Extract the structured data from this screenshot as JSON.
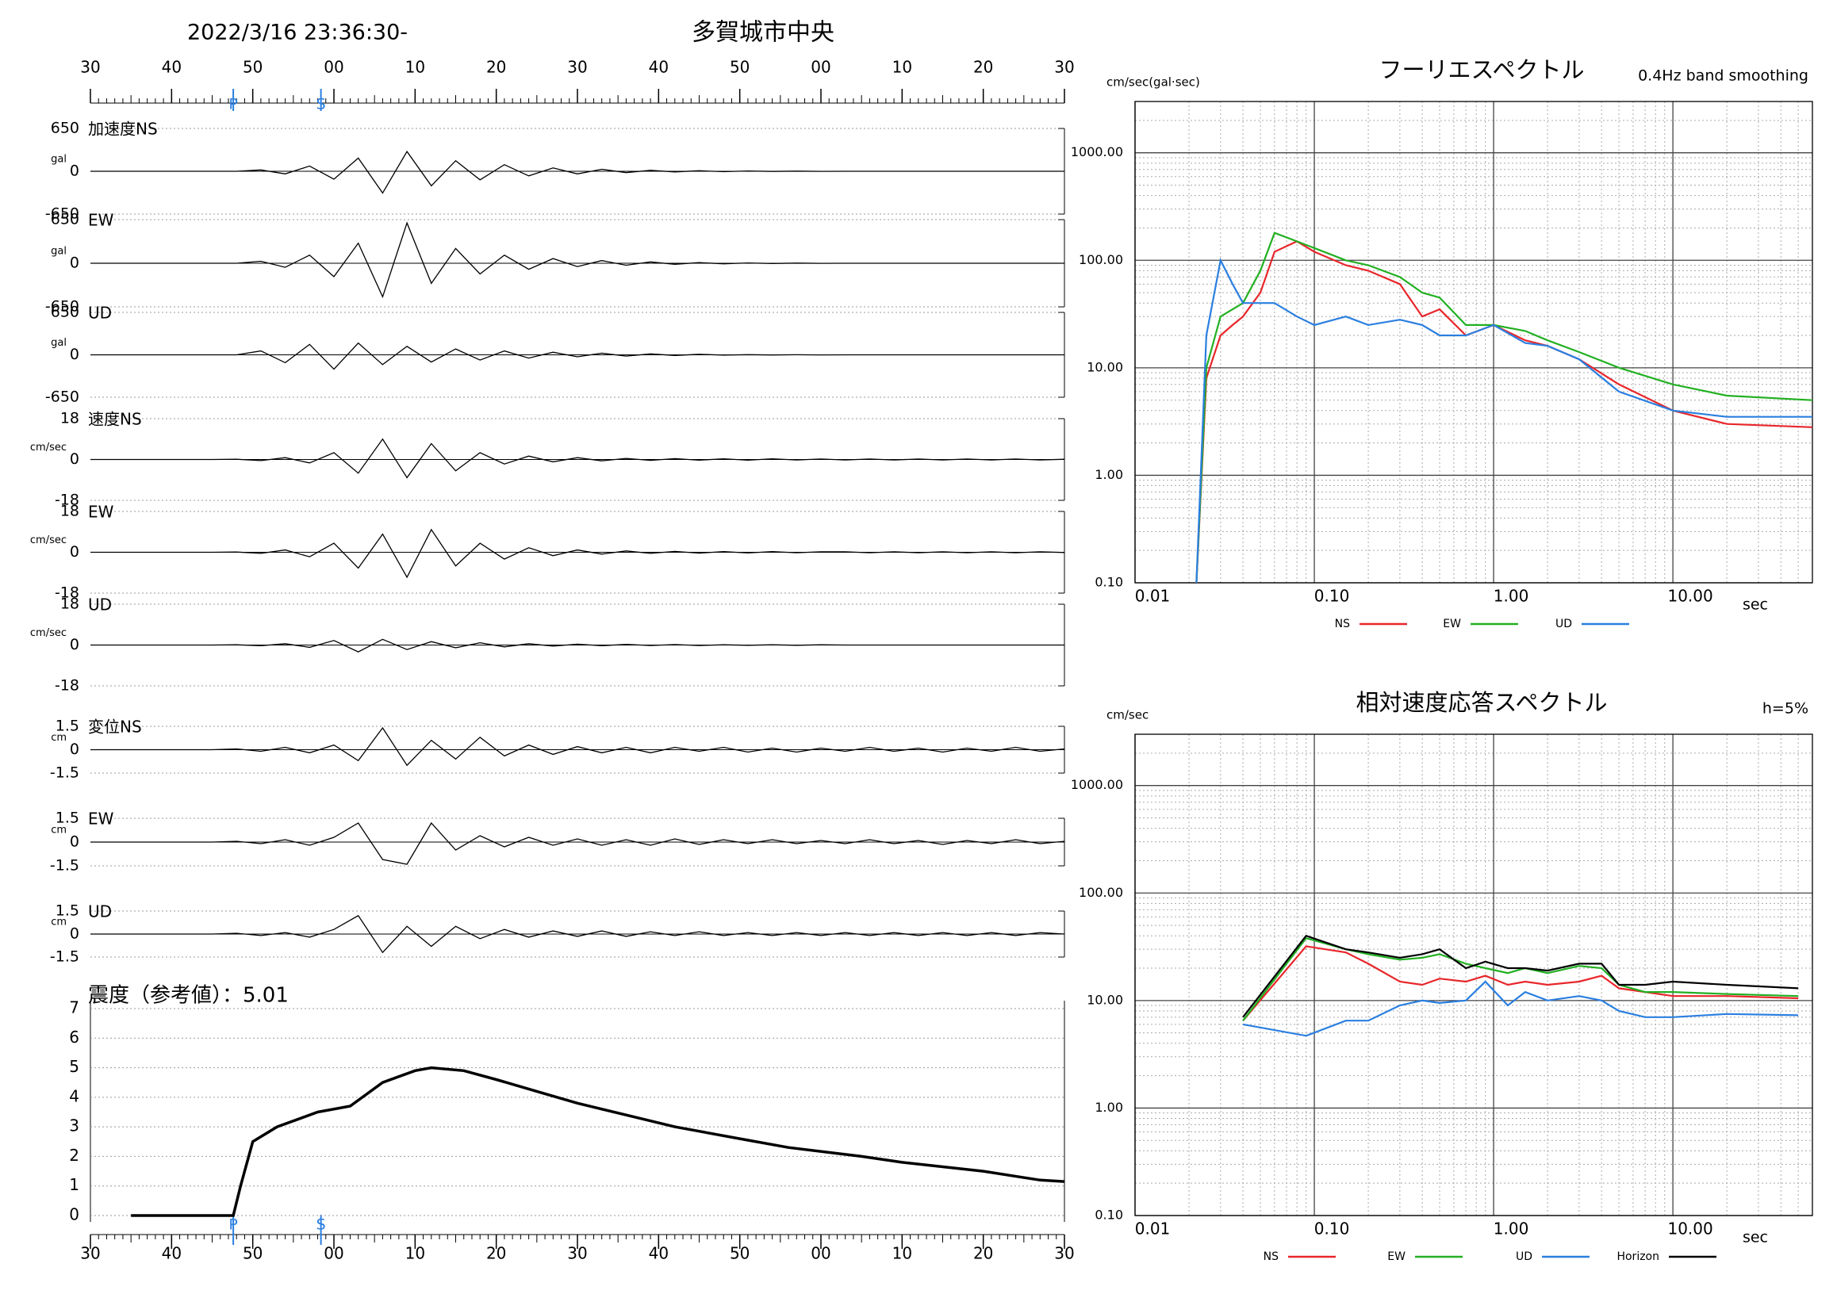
{
  "header": {
    "datetime": "2022/3/16 23:36:30-",
    "station": "多賀城市中央"
  },
  "chart_data": [
    {
      "type": "waveform",
      "xlim": [
        0,
        120
      ],
      "xticks": [
        {
          "value": 0,
          "label": "30"
        },
        {
          "value": 10,
          "label": "40"
        },
        {
          "value": 20,
          "label": "50"
        },
        {
          "value": 30,
          "label": "00"
        },
        {
          "value": 40,
          "label": "10"
        },
        {
          "value": 50,
          "label": "20"
        },
        {
          "value": 60,
          "label": "30"
        },
        {
          "value": 70,
          "label": "40"
        },
        {
          "value": 80,
          "label": "50"
        },
        {
          "value": 90,
          "label": "00"
        },
        {
          "value": 100,
          "label": "10"
        },
        {
          "value": 110,
          "label": "20"
        },
        {
          "value": 120,
          "label": "30"
        }
      ],
      "phase_markers": [
        {
          "label": "P",
          "value": 17.6
        },
        {
          "label": "S",
          "value": 28.4
        }
      ],
      "x": [
        0,
        3,
        6,
        9,
        12,
        15,
        18,
        21,
        24,
        27,
        30,
        33,
        36,
        39,
        42,
        45,
        48,
        51,
        54,
        57,
        60,
        63,
        66,
        69,
        72,
        75,
        78,
        81,
        84,
        87,
        90,
        93,
        96,
        99,
        102,
        105,
        108,
        111,
        114,
        117,
        120
      ],
      "panels": [
        {
          "label": "加速度NS",
          "unit": "gal",
          "ylim": [
            -650,
            650
          ],
          "yticks": [
            -650,
            0,
            650
          ],
          "values": [
            0,
            0,
            0,
            0,
            0,
            0,
            0,
            20,
            -40,
            80,
            -120,
            200,
            -330,
            300,
            -220,
            160,
            -130,
            100,
            -70,
            50,
            -40,
            30,
            -20,
            15,
            -10,
            8,
            -6,
            5,
            -3,
            2,
            -1,
            0,
            0,
            0,
            0,
            0,
            0,
            0,
            0,
            0,
            0
          ]
        },
        {
          "label": "EW",
          "unit": "gal",
          "ylim": [
            -650,
            650
          ],
          "yticks": [
            -650,
            0,
            650
          ],
          "values": [
            0,
            0,
            0,
            0,
            0,
            0,
            0,
            30,
            -60,
            120,
            -200,
            300,
            -500,
            600,
            -300,
            220,
            -160,
            120,
            -90,
            70,
            -50,
            40,
            -30,
            20,
            -15,
            10,
            -8,
            5,
            -4,
            2,
            -1,
            0,
            0,
            0,
            0,
            0,
            0,
            0,
            0,
            0,
            0
          ]
        },
        {
          "label": "UD",
          "unit": "gal",
          "ylim": [
            -650,
            650
          ],
          "yticks": [
            -650,
            0,
            650
          ],
          "values": [
            0,
            0,
            0,
            0,
            0,
            0,
            0,
            60,
            -120,
            160,
            -220,
            180,
            -150,
            130,
            -110,
            90,
            -80,
            60,
            -50,
            40,
            -30,
            25,
            -20,
            15,
            -10,
            8,
            -5,
            3,
            -2,
            1,
            -1,
            0,
            0,
            0,
            0,
            0,
            0,
            0,
            0,
            0,
            0
          ]
        },
        {
          "label": "速度NS",
          "unit": "cm/sec",
          "ylim": [
            -18,
            18
          ],
          "yticks": [
            -18,
            0,
            18
          ],
          "values": [
            0,
            0,
            0,
            0,
            0,
            0,
            0.1,
            -0.5,
            0.8,
            -1.5,
            3,
            -6,
            9,
            -8,
            7,
            -5,
            3,
            -2,
            1.5,
            -1,
            0.8,
            -0.6,
            0.5,
            -0.4,
            0.4,
            -0.3,
            0.3,
            -0.3,
            0.3,
            -0.2,
            0.2,
            -0.2,
            0.2,
            -0.2,
            0.2,
            -0.2,
            0.2,
            -0.2,
            0.2,
            -0.2,
            0.1
          ]
        },
        {
          "label": "EW",
          "unit": "cm/sec",
          "ylim": [
            -18,
            18
          ],
          "yticks": [
            -18,
            0,
            18
          ],
          "values": [
            0,
            0,
            0,
            0,
            0,
            0,
            0.1,
            -0.5,
            1,
            -2,
            4,
            -7,
            8,
            -11,
            10,
            -6,
            4,
            -3,
            2,
            -1.5,
            1,
            -0.8,
            0.6,
            -0.5,
            0.4,
            -0.4,
            0.3,
            -0.3,
            0.3,
            -0.2,
            0.2,
            0.2,
            -0.2,
            0.2,
            -0.2,
            0.2,
            -0.2,
            0.2,
            -0.2,
            0.2,
            -0.1
          ]
        },
        {
          "label": "UD",
          "unit": "cm/sec",
          "ylim": [
            -18,
            18
          ],
          "yticks": [
            -18,
            0,
            18
          ],
          "values": [
            0,
            0,
            0,
            0,
            0,
            0,
            0.1,
            -0.3,
            0.6,
            -1,
            2,
            -3,
            2.5,
            -2,
            1.5,
            -1.2,
            1,
            -0.8,
            0.6,
            -0.5,
            0.4,
            -0.3,
            0.3,
            -0.2,
            0.2,
            -0.2,
            0.1,
            -0.1,
            0.1,
            -0.1,
            0.1,
            0,
            0,
            0,
            0,
            0,
            0,
            0,
            0,
            0,
            0
          ]
        },
        {
          "label": "変位NS",
          "unit": "cm",
          "ylim": [
            -1.5,
            1.5
          ],
          "yticks": [
            -1.5,
            0,
            1.5
          ],
          "values": [
            0,
            0,
            0,
            0,
            0,
            0,
            0.05,
            -0.1,
            0.15,
            -0.2,
            0.3,
            -0.7,
            1.4,
            -1.0,
            0.6,
            -0.6,
            0.8,
            -0.4,
            0.3,
            -0.3,
            0.2,
            -0.2,
            0.15,
            -0.2,
            0.15,
            -0.1,
            0.15,
            -0.15,
            0.1,
            -0.15,
            0.1,
            -0.1,
            0.15,
            -0.1,
            0.1,
            -0.15,
            0.1,
            -0.1,
            0.15,
            -0.1,
            0.05
          ]
        },
        {
          "label": "EW",
          "unit": "cm",
          "ylim": [
            -1.5,
            1.5
          ],
          "yticks": [
            -1.5,
            0,
            1.5
          ],
          "values": [
            0,
            0,
            0,
            0,
            0,
            0,
            0.05,
            -0.1,
            0.15,
            -0.2,
            0.3,
            1.2,
            -1.1,
            -1.4,
            1.2,
            -0.5,
            0.4,
            -0.3,
            0.3,
            -0.2,
            0.2,
            -0.2,
            0.15,
            -0.2,
            0.2,
            -0.15,
            0.15,
            -0.1,
            0.15,
            -0.1,
            0.1,
            -0.1,
            0.15,
            -0.1,
            0.1,
            -0.15,
            0.1,
            -0.1,
            0.15,
            -0.1,
            0.05
          ]
        },
        {
          "label": "UD",
          "unit": "cm",
          "ylim": [
            -1.5,
            1.5
          ],
          "yticks": [
            -1.5,
            0,
            1.5
          ],
          "values": [
            0,
            0,
            0,
            0,
            0,
            0,
            0.05,
            -0.1,
            0.1,
            -0.2,
            0.3,
            1.2,
            -1.2,
            0.5,
            -0.8,
            0.5,
            -0.3,
            0.3,
            -0.2,
            0.2,
            -0.15,
            0.2,
            -0.15,
            0.15,
            -0.1,
            0.15,
            -0.1,
            0.1,
            -0.1,
            0.1,
            -0.1,
            0.1,
            -0.1,
            0.1,
            -0.1,
            0.1,
            -0.1,
            0.1,
            -0.1,
            0.1,
            0
          ]
        }
      ]
    },
    {
      "type": "line",
      "title": "震度（参考値）：5.01",
      "xlim": [
        0,
        120
      ],
      "xticks": [
        {
          "value": 0,
          "label": "30"
        },
        {
          "value": 10,
          "label": "40"
        },
        {
          "value": 20,
          "label": "50"
        },
        {
          "value": 30,
          "label": "00"
        },
        {
          "value": 40,
          "label": "10"
        },
        {
          "value": 50,
          "label": "20"
        },
        {
          "value": 60,
          "label": "30"
        },
        {
          "value": 70,
          "label": "40"
        },
        {
          "value": 80,
          "label": "50"
        },
        {
          "value": 90,
          "label": "00"
        },
        {
          "value": 100,
          "label": "10"
        },
        {
          "value": 110,
          "label": "20"
        },
        {
          "value": 120,
          "label": "30"
        }
      ],
      "ylim": [
        0,
        7
      ],
      "yticks": [
        0,
        1,
        2,
        3,
        4,
        5,
        6,
        7
      ],
      "grid": true,
      "color": "#000000",
      "x": [
        5,
        17.6,
        18.5,
        20,
        23,
        28,
        32,
        36,
        40,
        42,
        46,
        50,
        55,
        60,
        66,
        72,
        80,
        86,
        95,
        100,
        110,
        117,
        120
      ],
      "values": [
        0,
        0,
        1,
        2.5,
        3,
        3.5,
        3.7,
        4.5,
        4.9,
        5,
        4.9,
        4.6,
        4.2,
        3.8,
        3.4,
        3.0,
        2.6,
        2.3,
        2.0,
        1.8,
        1.5,
        1.2,
        1.15
      ]
    },
    {
      "type": "log-line",
      "title": "フーリエスペクトル",
      "subtitle": "0.4Hz band smoothing",
      "y_label": "cm/sec(gal·sec)",
      "x_label": "sec",
      "xscale": "log",
      "yscale": "log",
      "grid": true,
      "xlim": [
        0.01,
        60
      ],
      "ylim": [
        0.1,
        3000
      ],
      "xticks": [
        {
          "value": 0.01,
          "label": "0.01"
        },
        {
          "value": 0.1,
          "label": "0.10"
        },
        {
          "value": 1,
          "label": "1.00"
        },
        {
          "value": 10,
          "label": "10.00"
        }
      ],
      "yticks": [
        {
          "value": 0.1,
          "label": "0.10"
        },
        {
          "value": 1,
          "label": "1.00"
        },
        {
          "value": 10,
          "label": "10.00"
        },
        {
          "value": 100,
          "label": "100.00"
        },
        {
          "value": 1000,
          "label": "1000.00"
        }
      ],
      "x": [
        0.022,
        0.025,
        0.03,
        0.035,
        0.04,
        0.05,
        0.06,
        0.08,
        0.1,
        0.15,
        0.2,
        0.3,
        0.4,
        0.5,
        0.7,
        1,
        1.5,
        2,
        3,
        5,
        10,
        20,
        60
      ],
      "series": [
        {
          "name": "NS",
          "color": "#e8262b",
          "values": [
            0.1,
            8,
            20,
            25,
            30,
            50,
            120,
            150,
            120,
            90,
            80,
            60,
            30,
            35,
            20,
            25,
            18,
            16,
            12,
            7,
            4,
            3,
            2.8
          ]
        },
        {
          "name": "EW",
          "color": "#22b022",
          "values": [
            0.1,
            10,
            30,
            35,
            40,
            80,
            180,
            150,
            130,
            100,
            90,
            70,
            50,
            45,
            25,
            25,
            22,
            18,
            14,
            10,
            7,
            5.5,
            5
          ]
        },
        {
          "name": "UD",
          "color": "#2a7fe0",
          "values": [
            0.1,
            20,
            100,
            60,
            40,
            40,
            40,
            30,
            25,
            30,
            25,
            28,
            25,
            20,
            20,
            25,
            17,
            16,
            12,
            6,
            4,
            3.5,
            3.5
          ]
        }
      ]
    },
    {
      "type": "log-line",
      "title": "相対速度応答スペクトル",
      "subtitle": "h=5%",
      "y_label": "cm/sec",
      "x_label": "sec",
      "xscale": "log",
      "yscale": "log",
      "grid": true,
      "xlim": [
        0.01,
        60
      ],
      "ylim": [
        0.1,
        3000
      ],
      "xticks": [
        {
          "value": 0.01,
          "label": "0.01"
        },
        {
          "value": 0.1,
          "label": "0.10"
        },
        {
          "value": 1,
          "label": "1.00"
        },
        {
          "value": 10,
          "label": "10.00"
        }
      ],
      "yticks": [
        {
          "value": 0.1,
          "label": "0.10"
        },
        {
          "value": 1,
          "label": "1.00"
        },
        {
          "value": 10,
          "label": "10.00"
        },
        {
          "value": 100,
          "label": "100.00"
        },
        {
          "value": 1000,
          "label": "1000.00"
        }
      ],
      "x": [
        0.04,
        0.09,
        0.15,
        0.2,
        0.3,
        0.4,
        0.5,
        0.7,
        0.9,
        1.2,
        1.5,
        2,
        3,
        4,
        5,
        7,
        10,
        20,
        50
      ],
      "series": [
        {
          "name": "NS",
          "color": "#e8262b",
          "values": [
            6.5,
            32,
            28,
            22,
            15,
            14,
            16,
            15,
            17,
            14,
            15,
            14,
            15,
            17,
            13,
            12,
            11,
            11,
            10.5
          ]
        },
        {
          "name": "EW",
          "color": "#22b022",
          "values": [
            6.5,
            38,
            30,
            27,
            24,
            25,
            27,
            22,
            20,
            18,
            20,
            18,
            21,
            20,
            14,
            12,
            12,
            11.5,
            11
          ]
        },
        {
          "name": "UD",
          "color": "#2a7fe0",
          "values": [
            6,
            4.7,
            6.5,
            6.5,
            9,
            10,
            9.5,
            10,
            15,
            9,
            12,
            10,
            11,
            10,
            8,
            7,
            7,
            7.5,
            7.3
          ]
        },
        {
          "name": "Horizon",
          "color": "#000000",
          "values": [
            7,
            40,
            30,
            28,
            25,
            27,
            30,
            20,
            23,
            20,
            20,
            19,
            22,
            22,
            14,
            14,
            15,
            14,
            13
          ]
        }
      ]
    }
  ]
}
